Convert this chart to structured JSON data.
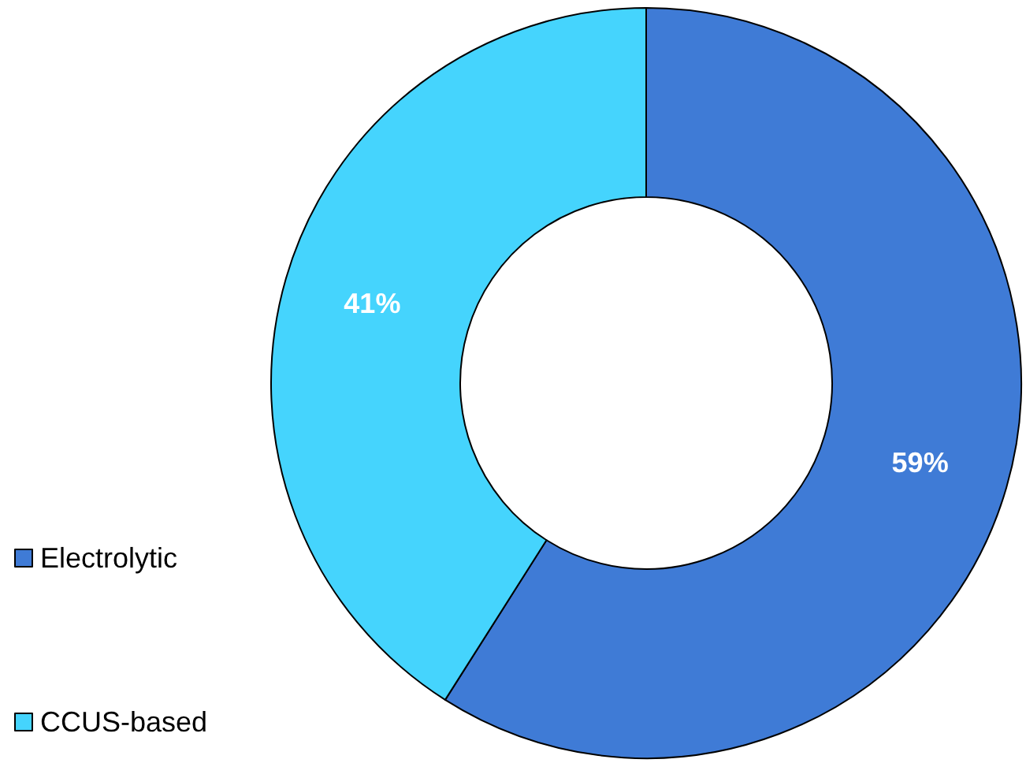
{
  "chart_data": {
    "type": "donut",
    "categories": [
      "Electrolytic",
      "CCUS-based"
    ],
    "values": [
      59,
      41
    ],
    "colors": [
      "#3f7bd6",
      "#45d4fd"
    ],
    "value_labels": [
      "59%",
      "41%"
    ],
    "legend": "left"
  }
}
